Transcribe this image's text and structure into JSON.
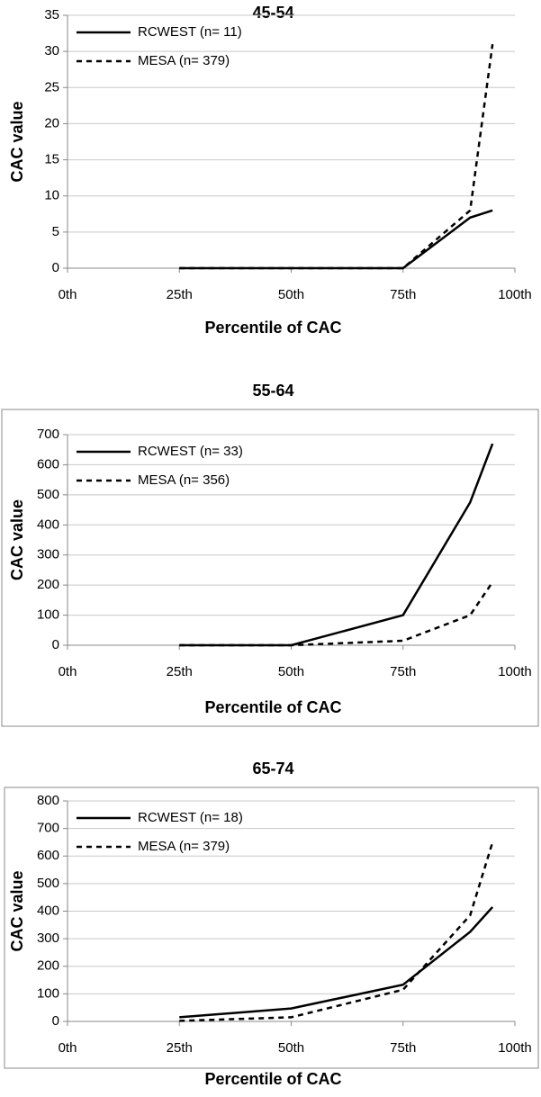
{
  "chart_data": [
    {
      "type": "line",
      "title": "45-54",
      "x_label": "Percentile of CAC",
      "y_label": "CAC value",
      "x": [
        25,
        50,
        75,
        90,
        95
      ],
      "xlim": [
        0,
        100
      ],
      "xticks": [
        {
          "value": 0,
          "label": "0th"
        },
        {
          "value": 25,
          "label": "25th"
        },
        {
          "value": 50,
          "label": "50th"
        },
        {
          "value": 75,
          "label": "75th"
        },
        {
          "value": 100,
          "label": "100th"
        }
      ],
      "ylim": [
        0,
        35
      ],
      "yticks": [
        0,
        5,
        10,
        15,
        20,
        25,
        30,
        35
      ],
      "grid": true,
      "frame": false,
      "legend": "top-left",
      "series": [
        {
          "name": "RCWEST (n= 11)",
          "color": "#000000",
          "dash": false,
          "values": [
            0,
            0,
            0,
            7,
            8
          ]
        },
        {
          "name": "MESA (n= 379)",
          "color": "#000000",
          "dash": true,
          "values": [
            0,
            0,
            0,
            8,
            31
          ]
        }
      ]
    },
    {
      "type": "line",
      "title": "55-64",
      "x_label": "Percentile of CAC",
      "y_label": "CAC value",
      "x": [
        25,
        50,
        75,
        90,
        95
      ],
      "xlim": [
        0,
        100
      ],
      "xticks": [
        {
          "value": 0,
          "label": "0th"
        },
        {
          "value": 25,
          "label": "25th"
        },
        {
          "value": 50,
          "label": "50th"
        },
        {
          "value": 75,
          "label": "75th"
        },
        {
          "value": 100,
          "label": "100th"
        }
      ],
      "ylim": [
        0,
        700
      ],
      "yticks": [
        0,
        100,
        200,
        300,
        400,
        500,
        600,
        700
      ],
      "grid": true,
      "frame": true,
      "legend": "top-left",
      "series": [
        {
          "name": "RCWEST (n= 33)",
          "color": "#000000",
          "dash": false,
          "values": [
            0,
            0,
            100,
            475,
            670
          ]
        },
        {
          "name": "MESA (n= 356)",
          "color": "#000000",
          "dash": true,
          "values": [
            0,
            0,
            15,
            100,
            210
          ]
        }
      ]
    },
    {
      "type": "line",
      "title": "65-74",
      "x_label": "Percentile of CAC",
      "y_label": "CAC value",
      "x": [
        25,
        50,
        75,
        90,
        95
      ],
      "xlim": [
        0,
        100
      ],
      "xticks": [
        {
          "value": 0,
          "label": "0th"
        },
        {
          "value": 25,
          "label": "25th"
        },
        {
          "value": 50,
          "label": "50th"
        },
        {
          "value": 75,
          "label": "75th"
        },
        {
          "value": 100,
          "label": "100th"
        }
      ],
      "ylim": [
        0,
        800
      ],
      "yticks": [
        0,
        100,
        200,
        300,
        400,
        500,
        600,
        700,
        800
      ],
      "grid": true,
      "frame": true,
      "legend": "top-left",
      "series": [
        {
          "name": "RCWEST (n= 18)",
          "color": "#000000",
          "dash": false,
          "values": [
            15,
            47,
            133,
            325,
            415
          ]
        },
        {
          "name": "MESA (n= 379)",
          "color": "#000000",
          "dash": true,
          "values": [
            2,
            15,
            115,
            385,
            650
          ]
        }
      ]
    }
  ]
}
